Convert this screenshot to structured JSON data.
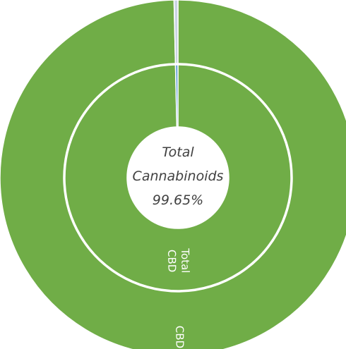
{
  "chart_data": {
    "type": "pie",
    "variant": "nested-donut",
    "center_label": {
      "line1": "Total",
      "line2": "Cannabinoids",
      "line3": "99.65%"
    },
    "rings": [
      {
        "name": "outer",
        "slices": [
          {
            "label": "CBD",
            "value": 99.65,
            "color": "#70ad47"
          },
          {
            "label": "",
            "value": 0.35,
            "color": "#c9d4e3"
          }
        ]
      },
      {
        "name": "inner",
        "slices": [
          {
            "label": "Total CBD",
            "value": 99.65,
            "color": "#70ad47"
          },
          {
            "label": "",
            "value": 0.35,
            "color": "#5b9bd5"
          }
        ]
      }
    ]
  }
}
